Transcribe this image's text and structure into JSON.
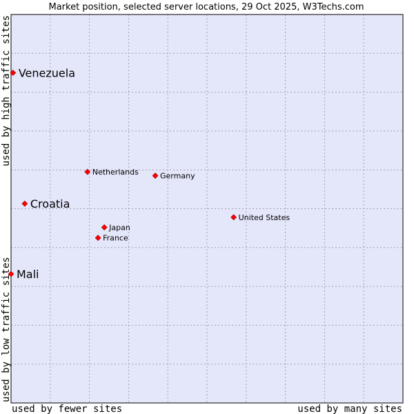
{
  "chart_data": {
    "type": "scatter",
    "title": "Market position, selected server locations, 29 Oct 2025, W3Techs.com",
    "xlabel_left": "used by fewer sites",
    "xlabel_right": "used by many sites",
    "ylabel_bottom": "used by low traffic sites",
    "ylabel_top": "used by high traffic sites",
    "xlim": [
      0,
      100
    ],
    "ylim": [
      0,
      100
    ],
    "grid": true,
    "colors": {
      "plot_bg": "#e4e6fa",
      "grid": "#a0a0b8",
      "point": "#ff0000",
      "point_edge": "#990000"
    },
    "points": [
      {
        "name": "Venezuela",
        "x": 0.5,
        "y": 85,
        "size": "large"
      },
      {
        "name": "Netherlands",
        "x": 19.5,
        "y": 59.5,
        "size": "small"
      },
      {
        "name": "Germany",
        "x": 36.8,
        "y": 58.5,
        "size": "small"
      },
      {
        "name": "Croatia",
        "x": 3.5,
        "y": 51.3,
        "size": "large"
      },
      {
        "name": "United States",
        "x": 56.8,
        "y": 47.8,
        "size": "small"
      },
      {
        "name": "Japan",
        "x": 23.8,
        "y": 45.2,
        "size": "small"
      },
      {
        "name": "France",
        "x": 22.2,
        "y": 42.5,
        "size": "small"
      },
      {
        "name": "Mali",
        "x": 0,
        "y": 33.2,
        "size": "large"
      }
    ]
  }
}
